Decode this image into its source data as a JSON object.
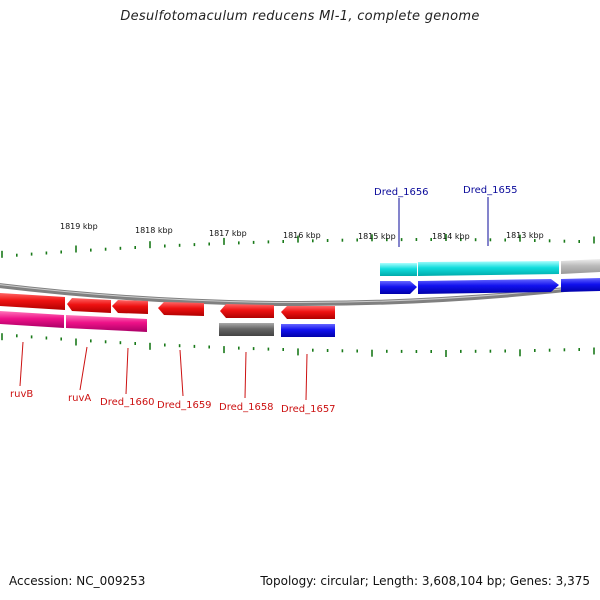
{
  "title": "Desulfotomaculum reducens MI-1, complete genome",
  "footer": {
    "accession": "Accession: NC_009253",
    "summary": "Topology: circular; Length: 3,608,104 bp; Genes: 3,375"
  },
  "colors": {
    "backbone": "#808080",
    "tick": "#1a7a1a",
    "forward_label": "#0a0a9a",
    "reverse_label": "#cc1111",
    "cds_red": "#ee1111",
    "cds_blue": "#1111ee",
    "cds_cyan": "#11dddd",
    "cds_magenta": "#ee1188",
    "cds_gray": "#666666",
    "cds_lightgray": "#bbbbbb"
  },
  "kbp_labels": [
    "1819 kbp",
    "1818 kbp",
    "1817 kbp",
    "1816 kbp",
    "1815 kbp",
    "1814 kbp",
    "1813 kbp"
  ],
  "forward_gene_labels": [
    "Dred_1656",
    "Dred_1655"
  ],
  "reverse_gene_labels": [
    "ruvB",
    "ruvA",
    "Dred_1660",
    "Dred_1659",
    "Dred_1658",
    "Dred_1657"
  ]
}
